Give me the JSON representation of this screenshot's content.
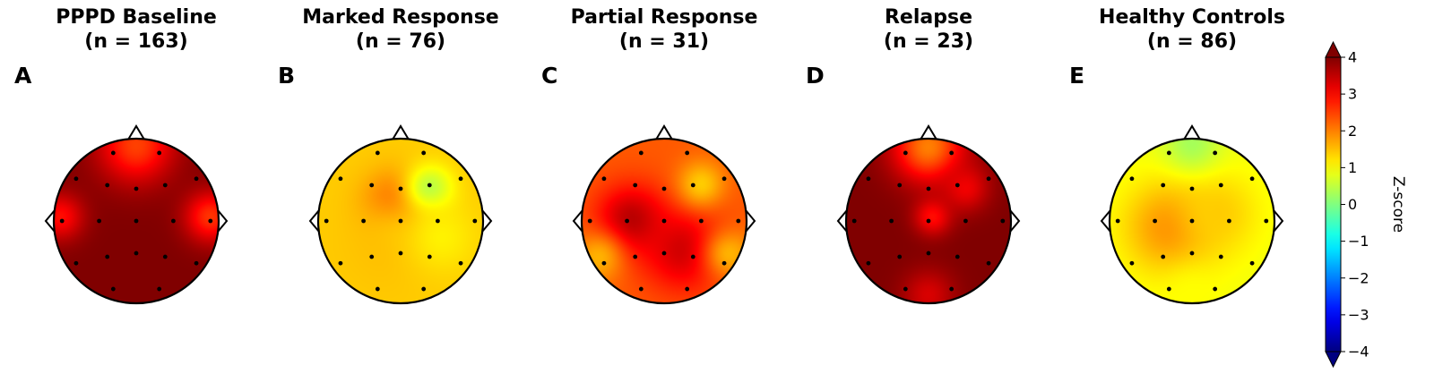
{
  "chart_data": {
    "type": "heatmap",
    "panels": [
      {
        "letter": "A",
        "title": "PPPD Baseline",
        "subtitle": "(n = 163)",
        "base": 4.0,
        "blobs": [
          {
            "x": 0,
            "y": 0.92,
            "z": 2.5,
            "s": 0.32
          },
          {
            "x": 0.9,
            "y": 0.05,
            "z": 2.6,
            "s": 0.22
          },
          {
            "x": -0.92,
            "y": 0.05,
            "z": 2.9,
            "s": 0.2
          }
        ]
      },
      {
        "letter": "B",
        "title": "Marked Response",
        "subtitle": "(n = 76)",
        "base": 1.4,
        "blobs": [
          {
            "x": -0.08,
            "y": 0.22,
            "z": 2.3,
            "s": 0.26
          },
          {
            "x": 0.35,
            "y": 0.38,
            "z": 0.3,
            "s": 0.2
          },
          {
            "x": -0.15,
            "y": -0.3,
            "z": 1.5,
            "s": 0.4
          },
          {
            "x": 0.5,
            "y": -0.2,
            "z": 1.1,
            "s": 0.3
          }
        ]
      },
      {
        "letter": "C",
        "title": "Partial Response",
        "subtitle": "(n = 31)",
        "base": 2.3,
        "blobs": [
          {
            "x": -0.4,
            "y": 0.0,
            "z": 3.6,
            "s": 0.3
          },
          {
            "x": 0.25,
            "y": -0.35,
            "z": 3.4,
            "s": 0.35
          },
          {
            "x": 0.45,
            "y": 0.45,
            "z": 1.4,
            "s": 0.2
          },
          {
            "x": -0.8,
            "y": -0.45,
            "z": 1.6,
            "s": 0.22
          },
          {
            "x": 0.8,
            "y": -0.4,
            "z": 1.6,
            "s": 0.22
          }
        ]
      },
      {
        "letter": "D",
        "title": "Relapse",
        "subtitle": "(n = 23)",
        "base": 4.0,
        "blobs": [
          {
            "x": 0,
            "y": 0.9,
            "z": 2.0,
            "s": 0.3
          },
          {
            "x": 0.05,
            "y": 0.05,
            "z": 2.9,
            "s": 0.16
          },
          {
            "x": 0.45,
            "y": 0.4,
            "z": 3.1,
            "s": 0.2
          },
          {
            "x": 0,
            "y": -0.9,
            "z": 3.3,
            "s": 0.22
          }
        ]
      },
      {
        "letter": "E",
        "title": "Healthy Controls",
        "subtitle": "(n = 86)",
        "base": 0.9,
        "blobs": [
          {
            "x": -0.25,
            "y": -0.08,
            "z": 1.9,
            "s": 0.4
          },
          {
            "x": 0.3,
            "y": 0.1,
            "z": 1.4,
            "s": 0.35
          },
          {
            "x": 0,
            "y": 0.95,
            "z": 0.3,
            "s": 0.25
          },
          {
            "x": 0,
            "y": -0.9,
            "z": 1.0,
            "s": 0.25
          }
        ]
      }
    ],
    "electrodes": [
      [
        -0.31,
        0.95
      ],
      [
        0.31,
        0.95
      ],
      [
        -0.81,
        0.59
      ],
      [
        -0.39,
        0.5
      ],
      [
        0,
        0.45
      ],
      [
        0.39,
        0.5
      ],
      [
        0.81,
        0.59
      ],
      [
        -1.0,
        0
      ],
      [
        -0.5,
        0
      ],
      [
        0,
        0
      ],
      [
        0.5,
        0
      ],
      [
        1.0,
        0
      ],
      [
        -0.81,
        -0.59
      ],
      [
        -0.39,
        -0.5
      ],
      [
        0,
        -0.45
      ],
      [
        0.39,
        -0.5
      ],
      [
        0.81,
        -0.59
      ],
      [
        -0.31,
        -0.95
      ],
      [
        0.31,
        -0.95
      ]
    ],
    "colorbar": {
      "label": "Z-score",
      "vmin": -4,
      "vmax": 4,
      "ticks": [
        4,
        3,
        2,
        1,
        0,
        -1,
        -2,
        -3,
        -4
      ],
      "tick_labels": [
        "4",
        "3",
        "2",
        "1",
        "0",
        "−1",
        "−2",
        "−3",
        "−4"
      ],
      "colormap": "jet",
      "extend": "both"
    }
  }
}
